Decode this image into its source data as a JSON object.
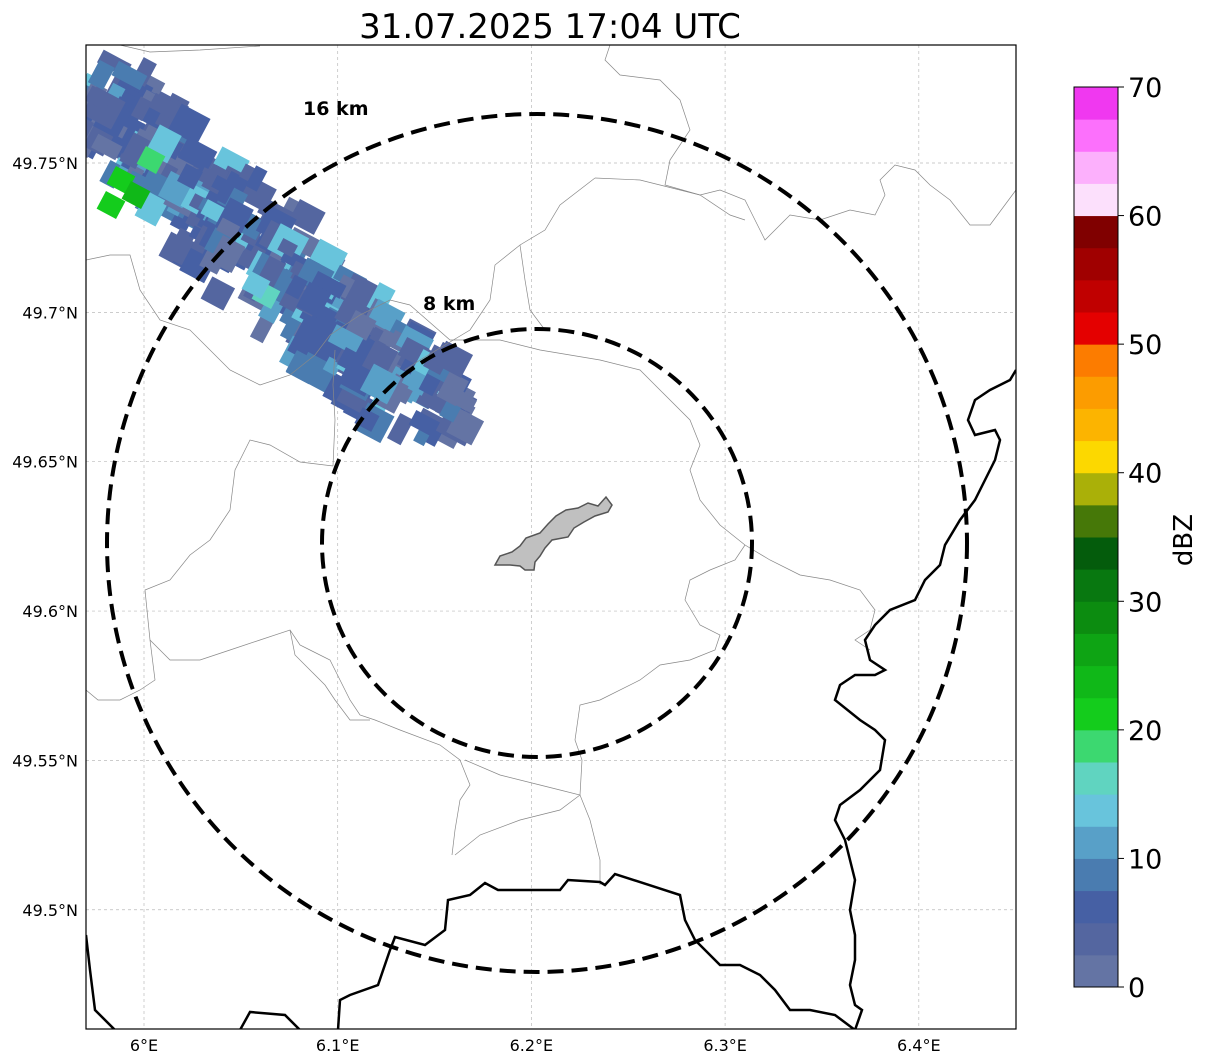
{
  "title": "31.07.2025 17:04 UTC",
  "map": {
    "lon_ticks": [
      {
        "value": 6.0,
        "label": "6°E"
      },
      {
        "value": 6.1,
        "label": "6.1°E"
      },
      {
        "value": 6.2,
        "label": "6.2°E"
      },
      {
        "value": 6.3,
        "label": "6.3°E"
      },
      {
        "value": 6.4,
        "label": "6.4°E"
      }
    ],
    "lat_ticks": [
      {
        "value": 49.75,
        "label": "49.75°N"
      },
      {
        "value": 49.7,
        "label": "49.7°N"
      },
      {
        "value": 49.65,
        "label": "49.65°N"
      },
      {
        "value": 49.6,
        "label": "49.6°N"
      },
      {
        "value": 49.55,
        "label": "49.55°N"
      },
      {
        "value": 49.5,
        "label": "49.5°N"
      }
    ],
    "gridlines": true,
    "range_rings": [
      {
        "label": "8 km",
        "radius_km": 8,
        "style": "dashed"
      },
      {
        "label": "16 km",
        "radius_km": 16,
        "style": "dashed"
      }
    ],
    "center_area_color": "#c0c0c0"
  },
  "colorbar": {
    "label": "dBZ",
    "tick_labels": [
      "0",
      "10",
      "20",
      "30",
      "40",
      "50",
      "60",
      "70"
    ],
    "min": 0,
    "max": 70,
    "step": 2.5,
    "colors": [
      "#6474a4",
      "#5466a0",
      "#4660a4",
      "#4a7cb0",
      "#58a0c8",
      "#68c4dc",
      "#60d4c0",
      "#3cd870",
      "#14cc1c",
      "#10b818",
      "#0ea414",
      "#0c8c10",
      "#087810",
      "#045c0c",
      "#467808",
      "#aab008",
      "#fcd800",
      "#fcb400",
      "#fc9c00",
      "#fc7c00",
      "#e40000",
      "#c00000",
      "#a00000",
      "#800000",
      "#fce0fc",
      "#fcb0fc",
      "#fc70fc",
      "#f038f0"
    ]
  }
}
